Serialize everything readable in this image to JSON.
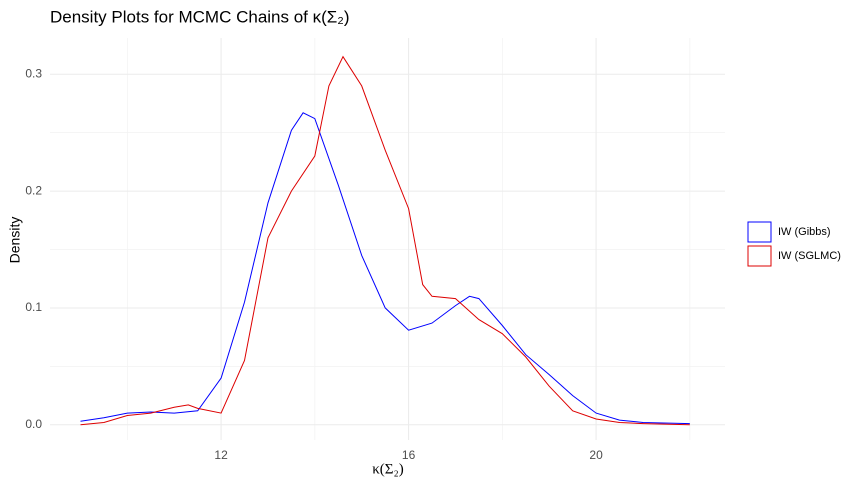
{
  "chart_data": {
    "type": "line",
    "title": "Density Plots for MCMC Chains of κ(Σ₂)",
    "x_label": "κ(Σ₂)",
    "y_label": "Density",
    "xlim": [
      8.35,
      22.75
    ],
    "ylim": [
      -0.013,
      0.331
    ],
    "xticks": [
      12,
      16,
      20
    ],
    "yticks": [
      {
        "value": 0,
        "label": "0.0"
      },
      0.1,
      0.2,
      0.3
    ],
    "xminor": [
      10,
      14,
      18,
      22
    ],
    "yminor": [
      0.05,
      0.15,
      0.25
    ],
    "grid": true,
    "legend": "right",
    "series": [
      {
        "name": "IW (Gibbs)",
        "color": "#0000ff",
        "x": [
          9,
          9.5,
          10,
          10.5,
          11,
          11.5,
          12,
          12.5,
          13,
          13.5,
          13.75,
          14,
          14.5,
          15,
          15.5,
          16,
          16.5,
          17,
          17.3,
          17.5,
          18,
          18.5,
          19,
          19.5,
          20,
          20.5,
          21,
          22
        ],
        "values": [
          0.003,
          0.006,
          0.01,
          0.011,
          0.01,
          0.012,
          0.04,
          0.105,
          0.19,
          0.252,
          0.267,
          0.262,
          0.205,
          0.145,
          0.1,
          0.081,
          0.087,
          0.102,
          0.11,
          0.108,
          0.085,
          0.06,
          0.043,
          0.025,
          0.01,
          0.004,
          0.002,
          0.001
        ]
      },
      {
        "name": "IW (SGLMC)",
        "color": "#dd0000",
        "x": [
          9,
          9.5,
          10,
          10.5,
          11,
          11.3,
          11.5,
          12,
          12.5,
          13,
          13.5,
          14,
          14.3,
          14.6,
          15,
          15.5,
          16,
          16.3,
          16.5,
          17,
          17.5,
          18,
          18.5,
          19,
          19.5,
          20,
          20.5,
          21,
          22
        ],
        "values": [
          0.0,
          0.002,
          0.008,
          0.01,
          0.015,
          0.017,
          0.014,
          0.01,
          0.055,
          0.16,
          0.2,
          0.23,
          0.29,
          0.315,
          0.29,
          0.235,
          0.185,
          0.12,
          0.11,
          0.108,
          0.09,
          0.078,
          0.058,
          0.033,
          0.012,
          0.005,
          0.002,
          0.001,
          0.0
        ]
      }
    ]
  }
}
